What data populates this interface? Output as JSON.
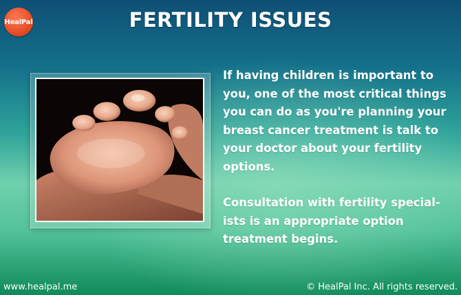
{
  "logo": {
    "text": "HealPal",
    "color": "#e8512a"
  },
  "header": {
    "title": "FERTILITY ISSUES"
  },
  "photo": {
    "subject": "baby-foot-in-hands"
  },
  "body": {
    "paragraph1": [
      "If having children is important to",
      "you, one of the most critical things",
      "you can do as you're planning your",
      "breast cancer treatment is talk to",
      "your doctor about your fertility",
      "options."
    ],
    "paragraph2": [
      "Consultation with fertility special-",
      "ists is an appropriate option",
      "treatment begins."
    ]
  },
  "footer": {
    "website": "www.healpal.me",
    "copyright": "© HealPal Inc. All rights reserved."
  }
}
